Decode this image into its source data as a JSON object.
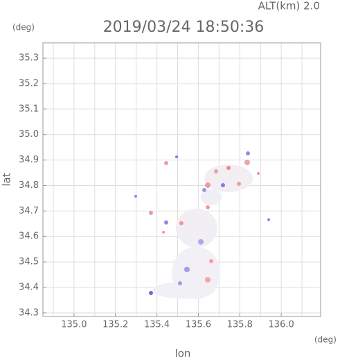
{
  "chart_data": {
    "type": "map",
    "title": "2019/03/24 18:50:36",
    "altitude_label": "ALT(km) 2.0",
    "y_unit": "(deg)",
    "x_unit": "(deg)",
    "xlabel": "lon",
    "ylabel": "lat",
    "xlim": [
      134.85,
      136.19
    ],
    "ylim": [
      34.286,
      35.36
    ],
    "xticks": [
      {
        "value": 135,
        "label": "135.0"
      },
      135.2,
      135.4,
      135.6,
      135.8,
      {
        "value": 136,
        "label": "136.0"
      }
    ],
    "yticks": [
      34.3,
      34.4,
      34.5,
      34.6,
      34.7,
      34.8,
      34.9,
      {
        "value": 35,
        "label": "35.0"
      },
      35.1,
      35.2,
      35.3
    ],
    "x_minor_grid": [
      134.9,
      135.1,
      135.3,
      135.5,
      135.7,
      135.9,
      136.1
    ],
    "grid": true
  }
}
